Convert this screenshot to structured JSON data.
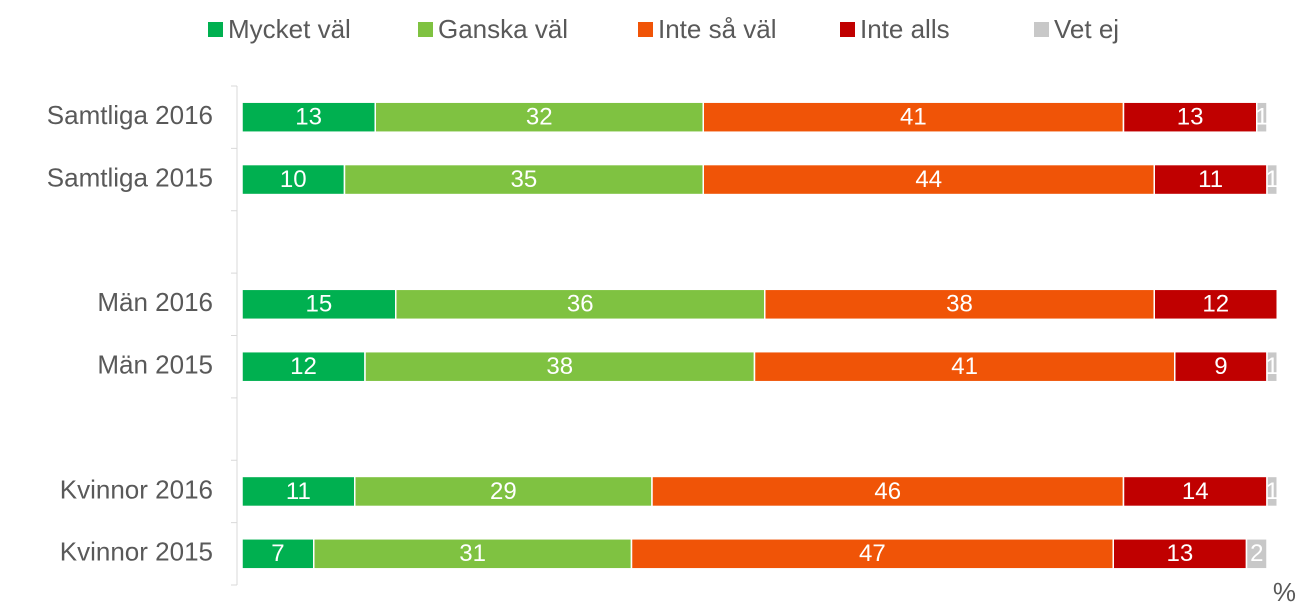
{
  "chart_data": {
    "type": "stacked-bar-horizontal",
    "categories": [
      "Samtliga 2016",
      "Samtliga 2015",
      null,
      "Män 2016",
      "Män 2015",
      null,
      "Kvinnor 2016",
      "Kvinnor 2015"
    ],
    "series": [
      {
        "name": "Mycket väl",
        "color": "#00b050",
        "values": [
          13,
          10,
          null,
          15,
          12,
          null,
          11,
          7
        ]
      },
      {
        "name": "Ganska väl",
        "color": "#7fc241",
        "values": [
          32,
          35,
          null,
          36,
          38,
          null,
          29,
          31
        ]
      },
      {
        "name": "Inte så väl",
        "color": "#f05407",
        "values": [
          41,
          44,
          null,
          38,
          41,
          null,
          46,
          47
        ]
      },
      {
        "name": "Inte alls",
        "color": "#c00000",
        "values": [
          13,
          11,
          null,
          12,
          9,
          null,
          14,
          13
        ]
      },
      {
        "name": "Vet ej",
        "color": "#c8c8c8",
        "values": [
          1,
          1,
          null,
          0,
          1,
          null,
          1,
          2
        ]
      }
    ],
    "xlim": [
      0,
      100
    ],
    "xlabel": "%",
    "legend": "top"
  }
}
